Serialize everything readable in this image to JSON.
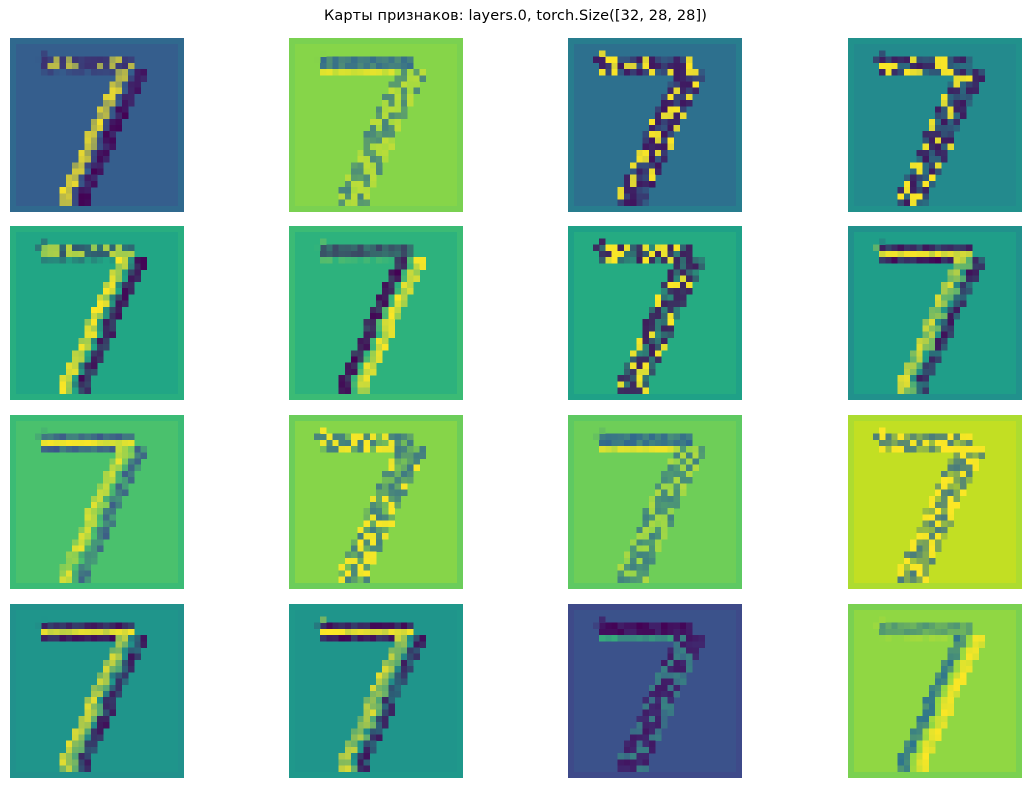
{
  "figure": {
    "title": "Карты признаков: layers.0, torch.Size([32, 28, 28])"
  },
  "colormap": "viridis",
  "feature_maps": [
    {
      "bg": "#355e8d",
      "hi": "#fde725",
      "lo": "#440154",
      "border": "#30698e",
      "style": "right_edge"
    },
    {
      "bg": "#86d549",
      "hi": "#fde725",
      "lo": "#31688e",
      "border": "#7ad151",
      "style": "top_bar_dark"
    },
    {
      "bg": "#2d708e",
      "hi": "#fde725",
      "lo": "#440154",
      "border": "#287d8e",
      "style": "edge_mixed"
    },
    {
      "bg": "#238a8d",
      "hi": "#fde725",
      "lo": "#440154",
      "border": "#21918c",
      "style": "edge_mixed"
    },
    {
      "bg": "#21a685",
      "hi": "#fde725",
      "lo": "#440154",
      "border": "#28ae80",
      "style": "right_edge"
    },
    {
      "bg": "#2db27d",
      "hi": "#fde725",
      "lo": "#440154",
      "border": "#3bbb75",
      "style": "left_dark"
    },
    {
      "bg": "#25ab82",
      "hi": "#fde725",
      "lo": "#440154",
      "border": "#1fa187",
      "style": "edge_mixed"
    },
    {
      "bg": "#1f9e89",
      "hi": "#fde725",
      "lo": "#440154",
      "border": "#21918c",
      "style": "top_bar_bright"
    },
    {
      "bg": "#4ac16d",
      "hi": "#fde725",
      "lo": "#3b528b",
      "border": "#3bbb75",
      "style": "top_bar_bright"
    },
    {
      "bg": "#86d549",
      "hi": "#fde725",
      "lo": "#31688e",
      "border": "#6ccd5a",
      "style": "edge_mixed"
    },
    {
      "bg": "#6ece58",
      "hi": "#fde725",
      "lo": "#31688e",
      "border": "#5ec962",
      "style": "top_bar_dark"
    },
    {
      "bg": "#c2df23",
      "hi": "#fde725",
      "lo": "#31688e",
      "border": "#addc30",
      "style": "edge_mixed"
    },
    {
      "bg": "#1f958b",
      "hi": "#fde725",
      "lo": "#440154",
      "border": "#21918c",
      "style": "top_bar_bright"
    },
    {
      "bg": "#1f958b",
      "hi": "#fde725",
      "lo": "#440154",
      "border": "#1f988b",
      "style": "top_bar_bright"
    },
    {
      "bg": "#3b528b",
      "hi": "#35b779",
      "lo": "#440154",
      "border": "#3e4a89",
      "style": "top_bar_dark"
    },
    {
      "bg": "#90d743",
      "hi": "#fde725",
      "lo": "#2c728e",
      "border": "#7ad151",
      "style": "left_dark"
    }
  ]
}
